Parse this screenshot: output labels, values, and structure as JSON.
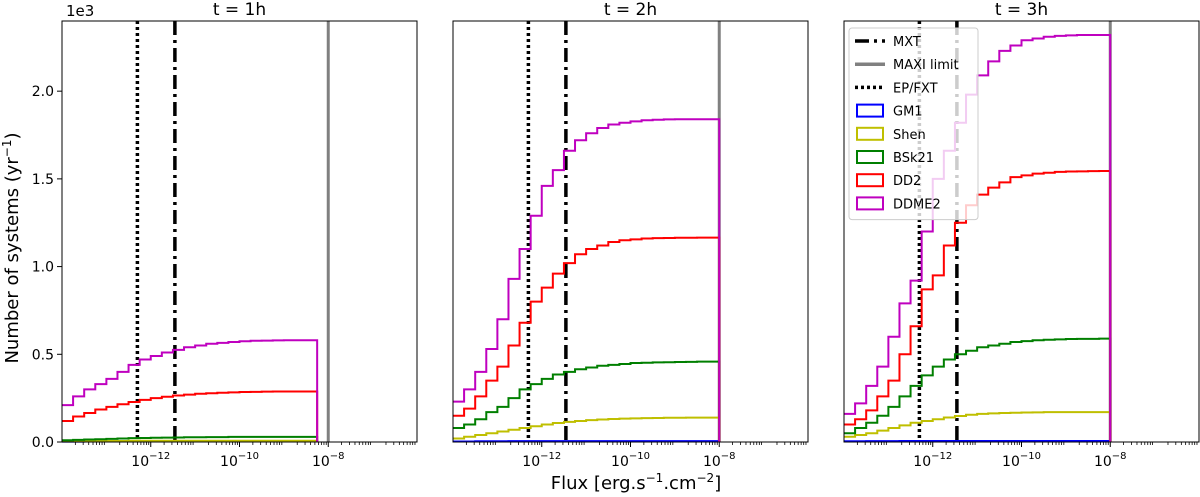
{
  "figure": {
    "ylabel": "Number of systems (yr",
    "ylabel_sup": "−1",
    "ylabel_close": ")",
    "xlabel": "Flux [erg.s",
    "xlabel_sup1": "−1",
    "xlabel_mid": ".cm",
    "xlabel_sup2": "−2",
    "xlabel_close": "]",
    "yscale_multiplier": "1e3"
  },
  "legend": [
    {
      "label": "MXT",
      "style": "dashdot",
      "color": "#000000"
    },
    {
      "label": "MAXI limit",
      "style": "solid",
      "color": "#808080"
    },
    {
      "label": "EP/FXT",
      "style": "dotted",
      "color": "#000000"
    },
    {
      "label": "GM1",
      "style": "box",
      "color": "#0000ff"
    },
    {
      "label": "Shen",
      "style": "box",
      "color": "#bfbf00"
    },
    {
      "label": "BSk21",
      "style": "box",
      "color": "#007f00"
    },
    {
      "label": "DD2",
      "style": "box",
      "color": "#ff0000"
    },
    {
      "label": "DDME2",
      "style": "box",
      "color": "#bf00bf"
    }
  ],
  "chart_data": [
    {
      "type": "line",
      "title": "t = 1h",
      "x_scale": "log",
      "xlim": [
        1e-14,
        1e-06
      ],
      "ylim": [
        0,
        2.4
      ],
      "y_unit_multiplier": 1000,
      "x_ticks": [
        "10^-12",
        "10^-10",
        "10^-8"
      ],
      "y_ticks": [
        "0.0",
        "0.5",
        "1.0",
        "1.5",
        "2.0"
      ],
      "vlines": {
        "MXT": 3.5e-12,
        "MAXI limit": 1e-08,
        "EP/FXT": 5e-13
      },
      "x_edges_log10": [
        -14.0,
        -13.75,
        -13.5,
        -13.25,
        -13.0,
        -12.75,
        -12.5,
        -12.25,
        -12.0,
        -11.75,
        -11.5,
        -11.25,
        -11.0,
        -10.75,
        -10.5,
        -10.25,
        -10.0,
        -9.75,
        -9.5,
        -9.25,
        -9.0,
        -8.75,
        -8.5,
        -8.25
      ],
      "series": [
        {
          "name": "GM1",
          "color": "#0000ff",
          "values": [
            0.002,
            0.002,
            0.003,
            0.003,
            0.003,
            0.003,
            0.004,
            0.004,
            0.004,
            0.004,
            0.004,
            0.004,
            0.004,
            0.004,
            0.004,
            0.004,
            0.004,
            0.004,
            0.004,
            0.004,
            0.004,
            0.004,
            0.004
          ]
        },
        {
          "name": "Shen",
          "color": "#bfbf00",
          "values": [
            0.004,
            0.005,
            0.005,
            0.006,
            0.006,
            0.006,
            0.007,
            0.007,
            0.007,
            0.007,
            0.007,
            0.007,
            0.007,
            0.007,
            0.007,
            0.007,
            0.007,
            0.007,
            0.007,
            0.007,
            0.007,
            0.007,
            0.007
          ]
        },
        {
          "name": "BSk21",
          "color": "#007f00",
          "values": [
            0.01,
            0.012,
            0.014,
            0.016,
            0.018,
            0.02,
            0.022,
            0.023,
            0.024,
            0.025,
            0.026,
            0.027,
            0.027,
            0.028,
            0.028,
            0.029,
            0.029,
            0.029,
            0.029,
            0.029,
            0.029,
            0.029,
            0.029
          ]
        },
        {
          "name": "DD2",
          "color": "#ff0000",
          "values": [
            0.12,
            0.145,
            0.165,
            0.185,
            0.2,
            0.215,
            0.228,
            0.24,
            0.25,
            0.258,
            0.265,
            0.27,
            0.275,
            0.278,
            0.281,
            0.283,
            0.285,
            0.286,
            0.287,
            0.288,
            0.288,
            0.288,
            0.288
          ]
        },
        {
          "name": "DDME2",
          "color": "#bf00bf",
          "values": [
            0.21,
            0.26,
            0.3,
            0.33,
            0.36,
            0.4,
            0.44,
            0.47,
            0.49,
            0.51,
            0.525,
            0.54,
            0.55,
            0.56,
            0.565,
            0.57,
            0.574,
            0.577,
            0.578,
            0.579,
            0.58,
            0.58,
            0.58
          ]
        }
      ]
    },
    {
      "type": "line",
      "title": "t = 2h",
      "x_scale": "log",
      "xlim": [
        1e-14,
        1e-06
      ],
      "ylim": [
        0,
        2.4
      ],
      "y_unit_multiplier": 1000,
      "x_ticks": [
        "10^-12",
        "10^-10",
        "10^-8"
      ],
      "y_ticks": [],
      "vlines": {
        "MXT": 3.5e-12,
        "MAXI limit": 1e-08,
        "EP/FXT": 5e-13
      },
      "x_edges_log10": [
        -14.0,
        -13.75,
        -13.5,
        -13.25,
        -13.0,
        -12.75,
        -12.5,
        -12.25,
        -12.0,
        -11.75,
        -11.5,
        -11.25,
        -11.0,
        -10.75,
        -10.5,
        -10.25,
        -10.0,
        -9.75,
        -9.5,
        -9.25,
        -9.0,
        -8.75,
        -8.5,
        -8.25,
        -8.0
      ],
      "series": [
        {
          "name": "GM1",
          "color": "#0000ff",
          "values": [
            0.003,
            0.003,
            0.004,
            0.004,
            0.004,
            0.005,
            0.005,
            0.005,
            0.005,
            0.005,
            0.005,
            0.005,
            0.005,
            0.005,
            0.005,
            0.005,
            0.005,
            0.005,
            0.005,
            0.005,
            0.005,
            0.005,
            0.005,
            0.005
          ]
        },
        {
          "name": "Shen",
          "color": "#bfbf00",
          "values": [
            0.02,
            0.03,
            0.04,
            0.05,
            0.06,
            0.07,
            0.08,
            0.09,
            0.1,
            0.108,
            0.115,
            0.12,
            0.125,
            0.128,
            0.131,
            0.133,
            0.135,
            0.136,
            0.137,
            0.138,
            0.138,
            0.139,
            0.139,
            0.139
          ]
        },
        {
          "name": "BSk21",
          "color": "#007f00",
          "values": [
            0.08,
            0.1,
            0.13,
            0.17,
            0.2,
            0.25,
            0.3,
            0.33,
            0.36,
            0.385,
            0.4,
            0.415,
            0.425,
            0.435,
            0.44,
            0.445,
            0.45,
            0.452,
            0.454,
            0.455,
            0.456,
            0.457,
            0.458,
            0.458
          ]
        },
        {
          "name": "DD2",
          "color": "#ff0000",
          "values": [
            0.15,
            0.19,
            0.26,
            0.35,
            0.43,
            0.55,
            0.68,
            0.8,
            0.88,
            0.96,
            1.02,
            1.07,
            1.1,
            1.12,
            1.14,
            1.15,
            1.155,
            1.16,
            1.162,
            1.163,
            1.164,
            1.164,
            1.165,
            1.165
          ]
        },
        {
          "name": "DDME2",
          "color": "#bf00bf",
          "values": [
            0.23,
            0.3,
            0.4,
            0.53,
            0.7,
            0.93,
            1.1,
            1.29,
            1.46,
            1.55,
            1.66,
            1.72,
            1.76,
            1.79,
            1.81,
            1.82,
            1.828,
            1.834,
            1.837,
            1.839,
            1.84,
            1.84,
            1.84,
            1.84
          ]
        }
      ]
    },
    {
      "type": "line",
      "title": "t = 3h",
      "x_scale": "log",
      "xlim": [
        1e-14,
        1e-06
      ],
      "ylim": [
        0,
        2.4
      ],
      "y_unit_multiplier": 1000,
      "x_ticks": [
        "10^-12",
        "10^-10",
        "10^-8"
      ],
      "y_ticks": [],
      "vlines": {
        "MXT": 3.5e-12,
        "MAXI limit": 1e-08,
        "EP/FXT": 5e-13
      },
      "x_edges_log10": [
        -14.0,
        -13.75,
        -13.5,
        -13.25,
        -13.0,
        -12.75,
        -12.5,
        -12.25,
        -12.0,
        -11.75,
        -11.5,
        -11.25,
        -11.0,
        -10.75,
        -10.5,
        -10.25,
        -10.0,
        -9.75,
        -9.5,
        -9.25,
        -9.0,
        -8.75,
        -8.5,
        -8.25,
        -8.0
      ],
      "series": [
        {
          "name": "GM1",
          "color": "#0000ff",
          "values": [
            0.004,
            0.004,
            0.005,
            0.005,
            0.005,
            0.006,
            0.006,
            0.006,
            0.006,
            0.006,
            0.006,
            0.006,
            0.006,
            0.006,
            0.006,
            0.006,
            0.006,
            0.006,
            0.006,
            0.006,
            0.006,
            0.006,
            0.006,
            0.006
          ]
        },
        {
          "name": "Shen",
          "color": "#bfbf00",
          "values": [
            0.03,
            0.04,
            0.05,
            0.065,
            0.08,
            0.095,
            0.11,
            0.12,
            0.13,
            0.14,
            0.148,
            0.155,
            0.16,
            0.163,
            0.165,
            0.167,
            0.168,
            0.169,
            0.17,
            0.17,
            0.17,
            0.17,
            0.17,
            0.17
          ]
        },
        {
          "name": "BSk21",
          "color": "#007f00",
          "values": [
            0.05,
            0.08,
            0.11,
            0.15,
            0.2,
            0.26,
            0.32,
            0.38,
            0.43,
            0.47,
            0.5,
            0.52,
            0.54,
            0.55,
            0.56,
            0.57,
            0.575,
            0.58,
            0.583,
            0.585,
            0.587,
            0.588,
            0.588,
            0.589
          ]
        },
        {
          "name": "DD2",
          "color": "#ff0000",
          "values": [
            0.1,
            0.13,
            0.18,
            0.26,
            0.35,
            0.5,
            0.66,
            0.87,
            0.95,
            1.12,
            1.25,
            1.35,
            1.41,
            1.45,
            1.48,
            1.51,
            1.52,
            1.53,
            1.535,
            1.54,
            1.542,
            1.543,
            1.544,
            1.545
          ]
        },
        {
          "name": "DDME2",
          "color": "#bf00bf",
          "values": [
            0.16,
            0.22,
            0.32,
            0.43,
            0.6,
            0.79,
            0.92,
            1.2,
            1.5,
            1.66,
            1.82,
            1.98,
            2.09,
            2.17,
            2.23,
            2.26,
            2.29,
            2.3,
            2.31,
            2.315,
            2.318,
            2.32,
            2.32,
            2.32
          ]
        }
      ]
    }
  ]
}
